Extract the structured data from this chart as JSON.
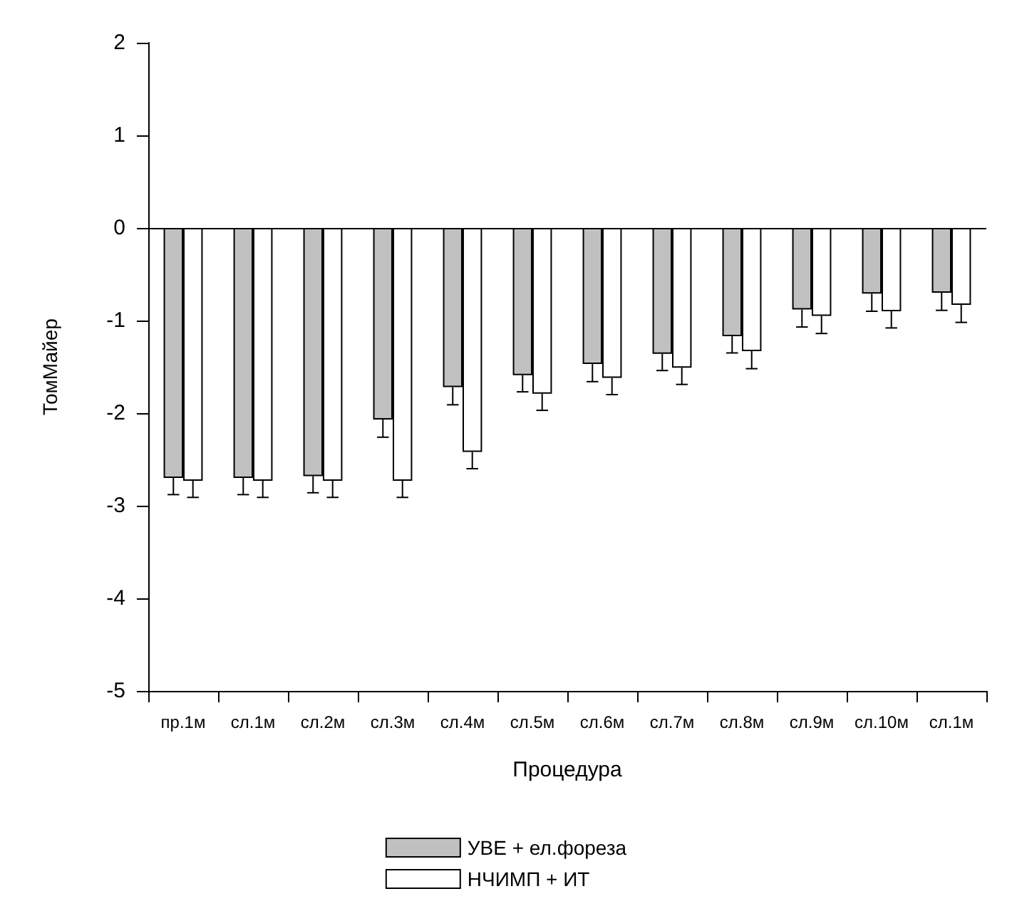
{
  "chart_data": {
    "type": "bar",
    "xlabel": "Процедура",
    "ylabel": "ТомМайер",
    "categories": [
      "пр.1м",
      "сл.1м",
      "сл.2м",
      "сл.3м",
      "сл.4м",
      "сл.5м",
      "сл.6м",
      "сл.7м",
      "сл.8м",
      "сл.9м",
      "сл.10м",
      "сл.1м"
    ],
    "series": [
      {
        "name": "УВЕ + ел.фореза",
        "color": "#c0c0c0",
        "values": [
          -2.7,
          -2.7,
          -2.68,
          -2.07,
          -1.72,
          -1.59,
          -1.47,
          -1.36,
          -1.17,
          -0.88,
          -0.71,
          -0.7
        ],
        "errors": [
          0.18,
          0.18,
          0.18,
          0.19,
          0.19,
          0.18,
          0.19,
          0.18,
          0.18,
          0.19,
          0.19,
          0.19
        ]
      },
      {
        "name": "НЧИМП + ИТ",
        "color": "#ffffff",
        "values": [
          -2.73,
          -2.73,
          -2.73,
          -2.73,
          -2.42,
          -1.79,
          -1.62,
          -1.51,
          -1.33,
          -0.95,
          -0.9,
          -0.83
        ],
        "errors": [
          0.18,
          0.18,
          0.18,
          0.18,
          0.18,
          0.18,
          0.18,
          0.18,
          0.19,
          0.19,
          0.18,
          0.19
        ]
      }
    ],
    "ylim": [
      -5,
      2
    ],
    "yticks": [
      -5,
      -4,
      -3,
      -2,
      -1,
      0,
      1,
      2
    ],
    "ref_lines": [
      {
        "axis": "y",
        "value": 0,
        "color": "#000000",
        "line_style": "solid"
      }
    ],
    "grid": false,
    "legend": "bottom"
  }
}
